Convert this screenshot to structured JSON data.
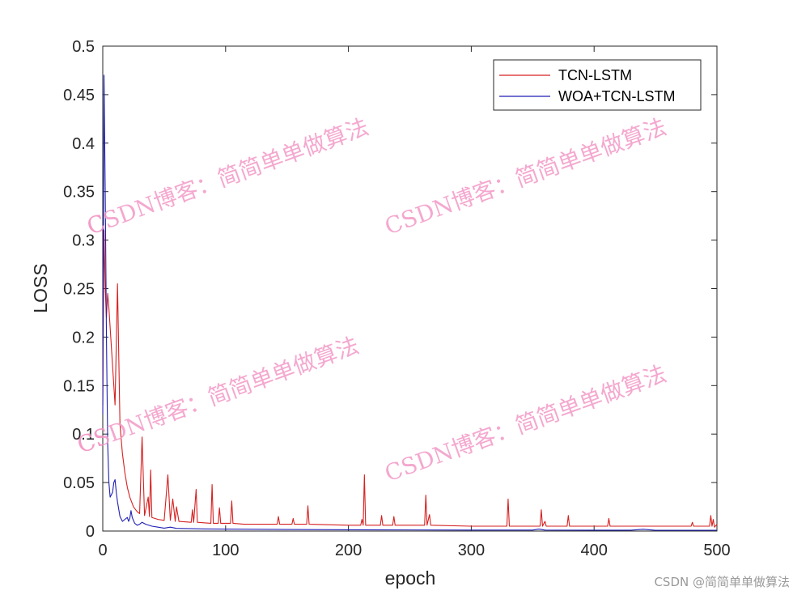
{
  "chart_data": {
    "type": "line",
    "title": "",
    "xlabel": "epoch",
    "ylabel": "LOSS",
    "xlim": [
      0,
      500
    ],
    "ylim": [
      0,
      0.5
    ],
    "x_ticks": [
      "0",
      "100",
      "200",
      "300",
      "400",
      "500"
    ],
    "y_ticks": [
      "0",
      "0.05",
      "0.1",
      "0.15",
      "0.2",
      "0.25",
      "0.3",
      "0.35",
      "0.4",
      "0.45",
      "0.5"
    ],
    "grid": false,
    "legend_position": "top-right",
    "series": [
      {
        "name": "TCN-LSTM",
        "color": "#d62020",
        "points": [
          [
            0,
            0.13
          ],
          [
            1,
            0.31
          ],
          [
            2,
            0.25
          ],
          [
            3,
            0.22
          ],
          [
            4,
            0.245
          ],
          [
            5,
            0.23
          ],
          [
            6,
            0.21
          ],
          [
            8,
            0.17
          ],
          [
            10,
            0.13
          ],
          [
            12,
            0.255
          ],
          [
            14,
            0.11
          ],
          [
            16,
            0.08
          ],
          [
            18,
            0.06
          ],
          [
            20,
            0.045
          ],
          [
            22,
            0.035
          ],
          [
            25,
            0.025
          ],
          [
            28,
            0.02
          ],
          [
            30,
            0.018
          ],
          [
            32,
            0.097
          ],
          [
            34,
            0.016
          ],
          [
            37,
            0.035
          ],
          [
            38,
            0.015
          ],
          [
            39,
            0.063
          ],
          [
            40,
            0.014
          ],
          [
            45,
            0.012
          ],
          [
            50,
            0.011
          ],
          [
            53,
            0.058
          ],
          [
            55,
            0.011
          ],
          [
            57,
            0.033
          ],
          [
            59,
            0.01
          ],
          [
            60,
            0.025
          ],
          [
            62,
            0.01
          ],
          [
            72,
            0.009
          ],
          [
            73,
            0.022
          ],
          [
            74,
            0.009
          ],
          [
            76,
            0.043
          ],
          [
            77,
            0.009
          ],
          [
            88,
            0.008
          ],
          [
            89,
            0.048
          ],
          [
            90,
            0.008
          ],
          [
            94,
            0.008
          ],
          [
            95,
            0.024
          ],
          [
            96,
            0.008
          ],
          [
            104,
            0.008
          ],
          [
            105,
            0.031
          ],
          [
            106,
            0.008
          ],
          [
            115,
            0.007
          ],
          [
            130,
            0.007
          ],
          [
            142,
            0.007
          ],
          [
            143,
            0.015
          ],
          [
            144,
            0.007
          ],
          [
            154,
            0.007
          ],
          [
            155,
            0.013
          ],
          [
            156,
            0.007
          ],
          [
            166,
            0.007
          ],
          [
            167,
            0.026
          ],
          [
            168,
            0.007
          ],
          [
            200,
            0.006
          ],
          [
            210,
            0.006
          ],
          [
            211,
            0.012
          ],
          [
            212,
            0.006
          ],
          [
            213,
            0.058
          ],
          [
            214,
            0.006
          ],
          [
            226,
            0.006
          ],
          [
            227,
            0.016
          ],
          [
            228,
            0.006
          ],
          [
            236,
            0.006
          ],
          [
            237,
            0.015
          ],
          [
            238,
            0.006
          ],
          [
            262,
            0.006
          ],
          [
            263,
            0.037
          ],
          [
            264,
            0.006
          ],
          [
            266,
            0.017
          ],
          [
            267,
            0.006
          ],
          [
            300,
            0.005
          ],
          [
            329,
            0.005
          ],
          [
            330,
            0.033
          ],
          [
            331,
            0.005
          ],
          [
            356,
            0.005
          ],
          [
            357,
            0.022
          ],
          [
            358,
            0.005
          ],
          [
            360,
            0.01
          ],
          [
            361,
            0.005
          ],
          [
            378,
            0.005
          ],
          [
            379,
            0.016
          ],
          [
            380,
            0.005
          ],
          [
            411,
            0.005
          ],
          [
            412,
            0.013
          ],
          [
            413,
            0.005
          ],
          [
            440,
            0.005
          ],
          [
            479,
            0.005
          ],
          [
            480,
            0.009
          ],
          [
            481,
            0.005
          ],
          [
            494,
            0.005
          ],
          [
            495,
            0.016
          ],
          [
            496,
            0.005
          ],
          [
            497,
            0.012
          ],
          [
            498,
            0.004
          ],
          [
            500,
            0.007
          ]
        ]
      },
      {
        "name": "WOA+TCN-LSTM",
        "color": "#1f1fb4",
        "points": [
          [
            0,
            0.12
          ],
          [
            1,
            0.47
          ],
          [
            2,
            0.35
          ],
          [
            3,
            0.2
          ],
          [
            4,
            0.09
          ],
          [
            5,
            0.05
          ],
          [
            6,
            0.035
          ],
          [
            8,
            0.04
          ],
          [
            9,
            0.05
          ],
          [
            10,
            0.053
          ],
          [
            11,
            0.04
          ],
          [
            12,
            0.03
          ],
          [
            14,
            0.015
          ],
          [
            16,
            0.01
          ],
          [
            18,
            0.012
          ],
          [
            20,
            0.014
          ],
          [
            21,
            0.01
          ],
          [
            22,
            0.013
          ],
          [
            23,
            0.021
          ],
          [
            24,
            0.014
          ],
          [
            26,
            0.008
          ],
          [
            28,
            0.006
          ],
          [
            30,
            0.007
          ],
          [
            32,
            0.009
          ],
          [
            35,
            0.007
          ],
          [
            40,
            0.005
          ],
          [
            45,
            0.004
          ],
          [
            50,
            0.003
          ],
          [
            55,
            0.004
          ],
          [
            60,
            0.0028
          ],
          [
            80,
            0.0022
          ],
          [
            100,
            0.002
          ],
          [
            150,
            0.0016
          ],
          [
            200,
            0.0013
          ],
          [
            300,
            0.001
          ],
          [
            350,
            0.001
          ],
          [
            355,
            0.002
          ],
          [
            360,
            0.001
          ],
          [
            400,
            0.0009
          ],
          [
            430,
            0.0009
          ],
          [
            440,
            0.0018
          ],
          [
            450,
            0.0008
          ],
          [
            500,
            0.0008
          ]
        ]
      }
    ]
  },
  "watermark": {
    "text": "CSDN博客：简简单单做算法",
    "color": "#f39ac7"
  },
  "credit": "CSDN @简简单单做算法"
}
